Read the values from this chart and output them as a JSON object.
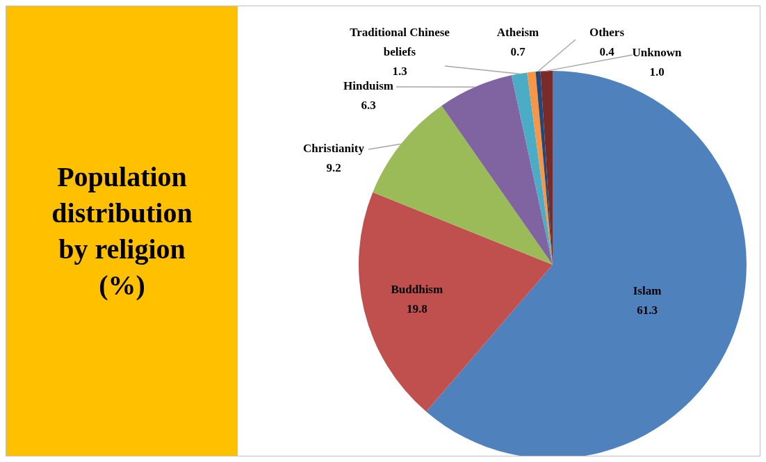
{
  "chart_data": {
    "type": "pie",
    "title": "Population distribution by religion (%)",
    "categories": [
      "Islam",
      "Buddhism",
      "Christianity",
      "Hinduism",
      "Traditional Chinese beliefs",
      "Atheism",
      "Others",
      "Unknown"
    ],
    "values": [
      61.3,
      19.8,
      9.2,
      6.3,
      1.3,
      0.7,
      0.4,
      1.0
    ],
    "value_labels": [
      "61.3",
      "19.8",
      "9.2",
      "6.3",
      "1.3",
      "0.7",
      "0.4",
      "1.0"
    ],
    "colors": [
      "#4f81bd",
      "#c0504d",
      "#9bbb59",
      "#8064a2",
      "#4bacc6",
      "#f79646",
      "#1f497d",
      "#772c2a"
    ],
    "legend": false
  }
}
